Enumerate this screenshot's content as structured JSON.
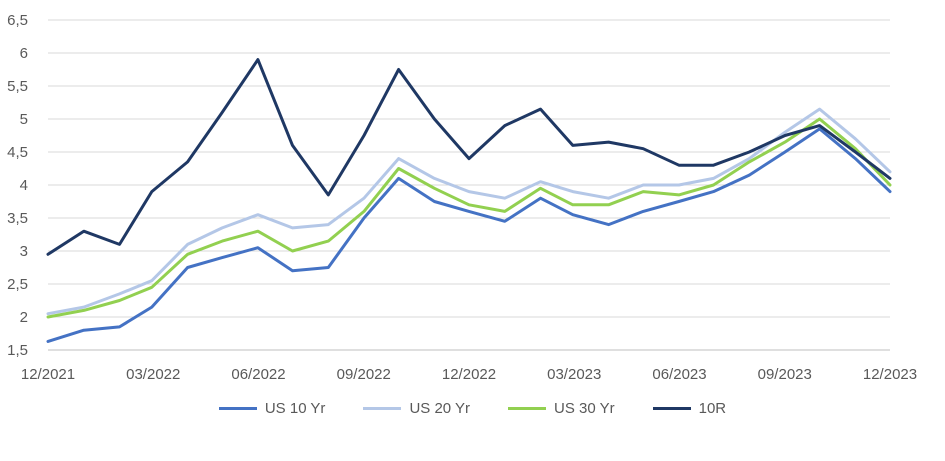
{
  "chart_data": {
    "type": "line",
    "title": "",
    "xlabel": "",
    "ylabel": "",
    "ylim": [
      1.5,
      6.5
    ],
    "yticks": [
      "1,5",
      "2",
      "2,5",
      "3",
      "3,5",
      "4",
      "4,5",
      "5",
      "5,5",
      "6",
      "6,5"
    ],
    "xticks": [
      "12/2021",
      "03/2022",
      "06/2022",
      "09/2022",
      "12/2022",
      "03/2023",
      "06/2023",
      "09/2023",
      "12/2023"
    ],
    "xrange": [
      "2021-12",
      "2023-12"
    ],
    "grid": true,
    "legend_position": "bottom",
    "series": [
      {
        "name": "US 10 Yr",
        "color": "#4472C4",
        "x": [
          "2021-12-01",
          "2022-01-01",
          "2022-02-01",
          "2022-03-01",
          "2022-04-01",
          "2022-05-01",
          "2022-06-01",
          "2022-07-01",
          "2022-08-01",
          "2022-09-01",
          "2022-10-01",
          "2022-11-01",
          "2022-12-01",
          "2023-01-01",
          "2023-02-01",
          "2023-03-01",
          "2023-04-01",
          "2023-05-01",
          "2023-06-01",
          "2023-07-01",
          "2023-08-01",
          "2023-09-01",
          "2023-10-01",
          "2023-11-01",
          "2023-12-01"
        ],
        "values": [
          1.63,
          1.8,
          1.85,
          2.15,
          2.75,
          2.9,
          3.05,
          2.7,
          2.75,
          3.5,
          4.1,
          3.75,
          3.6,
          3.45,
          3.8,
          3.55,
          3.4,
          3.6,
          3.75,
          3.9,
          4.15,
          4.5,
          4.85,
          4.4,
          3.9
        ]
      },
      {
        "name": "US 20 Yr",
        "color": "#B4C7E7",
        "x": [
          "2021-12-01",
          "2022-01-01",
          "2022-02-01",
          "2022-03-01",
          "2022-04-01",
          "2022-05-01",
          "2022-06-01",
          "2022-07-01",
          "2022-08-01",
          "2022-09-01",
          "2022-10-01",
          "2022-11-01",
          "2022-12-01",
          "2023-01-01",
          "2023-02-01",
          "2023-03-01",
          "2023-04-01",
          "2023-05-01",
          "2023-06-01",
          "2023-07-01",
          "2023-08-01",
          "2023-09-01",
          "2023-10-01",
          "2023-11-01",
          "2023-12-01"
        ],
        "values": [
          2.05,
          2.15,
          2.35,
          2.55,
          3.1,
          3.35,
          3.55,
          3.35,
          3.4,
          3.8,
          4.4,
          4.1,
          3.9,
          3.8,
          4.05,
          3.9,
          3.8,
          4.0,
          4.0,
          4.1,
          4.4,
          4.8,
          5.15,
          4.7,
          4.2
        ]
      },
      {
        "name": "US 30 Yr",
        "color": "#92D050",
        "x": [
          "2021-12-01",
          "2022-01-01",
          "2022-02-01",
          "2022-03-01",
          "2022-04-01",
          "2022-05-01",
          "2022-06-01",
          "2022-07-01",
          "2022-08-01",
          "2022-09-01",
          "2022-10-01",
          "2022-11-01",
          "2022-12-01",
          "2023-01-01",
          "2023-02-01",
          "2023-03-01",
          "2023-04-01",
          "2023-05-01",
          "2023-06-01",
          "2023-07-01",
          "2023-08-01",
          "2023-09-01",
          "2023-10-01",
          "2023-11-01",
          "2023-12-01"
        ],
        "values": [
          2.0,
          2.1,
          2.25,
          2.45,
          2.95,
          3.15,
          3.3,
          3.0,
          3.15,
          3.6,
          4.25,
          3.95,
          3.7,
          3.6,
          3.95,
          3.7,
          3.7,
          3.9,
          3.85,
          4.0,
          4.35,
          4.65,
          5.0,
          4.55,
          4.0
        ]
      },
      {
        "name": "10R",
        "color": "#1F3864",
        "x": [
          "2021-12-01",
          "2022-01-01",
          "2022-02-01",
          "2022-03-01",
          "2022-04-01",
          "2022-05-01",
          "2022-06-01",
          "2022-07-01",
          "2022-08-01",
          "2022-09-01",
          "2022-10-01",
          "2022-11-01",
          "2022-12-01",
          "2023-01-01",
          "2023-02-01",
          "2023-03-01",
          "2023-04-01",
          "2023-05-01",
          "2023-06-01",
          "2023-07-01",
          "2023-08-01",
          "2023-09-01",
          "2023-10-01",
          "2023-11-01",
          "2023-12-01"
        ],
        "values": [
          2.95,
          3.3,
          3.1,
          3.9,
          4.35,
          5.1,
          5.9,
          4.6,
          3.85,
          4.75,
          5.75,
          5.0,
          4.4,
          4.9,
          5.15,
          4.6,
          4.65,
          4.55,
          4.3,
          4.3,
          4.5,
          4.75,
          4.9,
          4.5,
          4.1
        ]
      }
    ]
  }
}
